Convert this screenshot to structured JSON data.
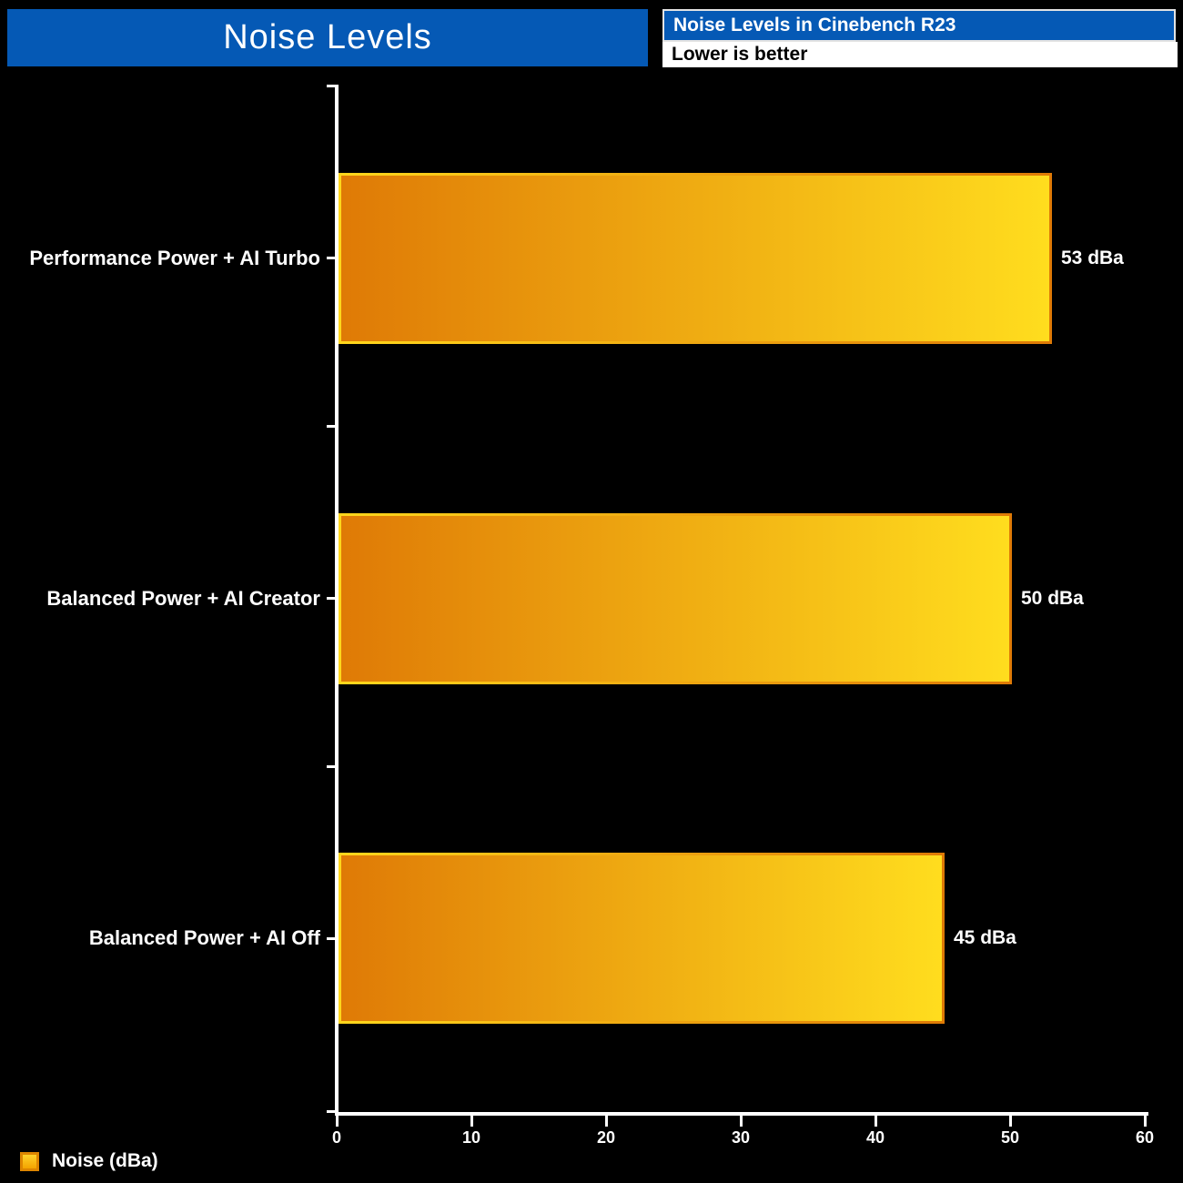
{
  "header": {
    "title": "Noise Levels",
    "subtitle": "Noise Levels in Cinebench R23",
    "note": "Lower is better"
  },
  "legend": {
    "label": "Noise (dBa)"
  },
  "colors": {
    "background": "#000000",
    "header_blue": "#0559B5",
    "bar_gradient_start": "#DF7A06",
    "bar_gradient_end": "#FFDD1E",
    "bar_border_start": "#FFD71C",
    "bar_border_end": "#DF7A06",
    "axis": "#FFFFFF",
    "text": "#FFFFFF"
  },
  "chart_data": {
    "type": "bar",
    "orientation": "horizontal",
    "title": "Noise Levels",
    "subtitle": "Noise Levels in Cinebench R23",
    "note": "Lower is better",
    "categories": [
      "Performance Power + AI Turbo",
      "Balanced Power + AI Creator",
      "Balanced Power + AI Off"
    ],
    "values": [
      53,
      50,
      45
    ],
    "value_labels": [
      "53 dBa",
      "50 dBa",
      "45 dBa"
    ],
    "series_name": "Noise (dBa)",
    "xlabel": "",
    "ylabel": "",
    "xlim": [
      0,
      60
    ],
    "xticks": [
      0,
      10,
      20,
      30,
      40,
      50,
      60
    ],
    "grid": false,
    "legend_position": "bottom-left"
  }
}
